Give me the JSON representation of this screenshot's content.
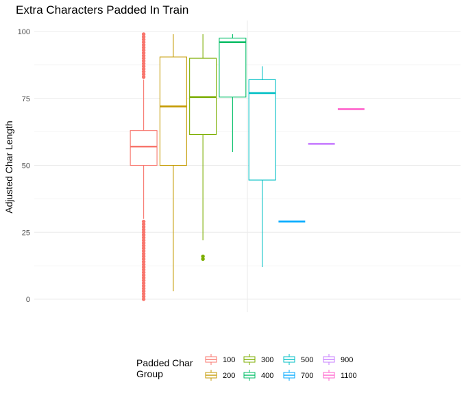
{
  "chart_data": {
    "type": "boxplot",
    "title": "Extra Characters Padded In Train",
    "xlabel": "",
    "ylabel": "Adjusted Char Length",
    "ylim": [
      0,
      100
    ],
    "yticks": [
      0,
      25,
      50,
      75,
      100
    ],
    "grid": true,
    "legend": {
      "title_lines": [
        "Padded Char",
        "Group"
      ],
      "placement": "bottom"
    },
    "series": [
      {
        "name": "100",
        "color": "#F8766D",
        "q1": 50,
        "median": 57,
        "q3": 63,
        "whisker_low": 30,
        "whisker_high": 82,
        "outliers": [
          0,
          1,
          2,
          3,
          4,
          5,
          6,
          7,
          8,
          9,
          10,
          11,
          12,
          13,
          14,
          15,
          16,
          17,
          18,
          19,
          20,
          21,
          22,
          23,
          24,
          25,
          26,
          27,
          28,
          29,
          83,
          84,
          85,
          86,
          87,
          88,
          89,
          90,
          91,
          92,
          93,
          94,
          95,
          96,
          97,
          98,
          99
        ]
      },
      {
        "name": "200",
        "color": "#C49A00",
        "q1": 50,
        "median": 72,
        "q3": 90.5,
        "whisker_low": 3,
        "whisker_high": 99,
        "outliers": []
      },
      {
        "name": "300",
        "color": "#7CAE00",
        "q1": 61.5,
        "median": 75.5,
        "q3": 90,
        "whisker_low": 22,
        "whisker_high": 99,
        "outliers": [
          15,
          16
        ]
      },
      {
        "name": "400",
        "color": "#00BE67",
        "q1": 75.5,
        "median": 96,
        "q3": 97.5,
        "whisker_low": 55,
        "whisker_high": 99,
        "outliers": []
      },
      {
        "name": "500",
        "color": "#00BFC4",
        "q1": 44.5,
        "median": 77,
        "q3": 82,
        "whisker_low": 12,
        "whisker_high": 87,
        "outliers": []
      },
      {
        "name": "700",
        "color": "#00A9FF",
        "q1": 29,
        "median": 29,
        "q3": 29,
        "whisker_low": 29,
        "whisker_high": 29,
        "outliers": []
      },
      {
        "name": "900",
        "color": "#C77CFF",
        "q1": 58,
        "median": 58,
        "q3": 58,
        "whisker_low": 58,
        "whisker_high": 58,
        "outliers": []
      },
      {
        "name": "1100",
        "color": "#FF61CC",
        "q1": 71,
        "median": 71,
        "q3": 71,
        "whisker_low": 71,
        "whisker_high": 71,
        "outliers": []
      }
    ]
  }
}
